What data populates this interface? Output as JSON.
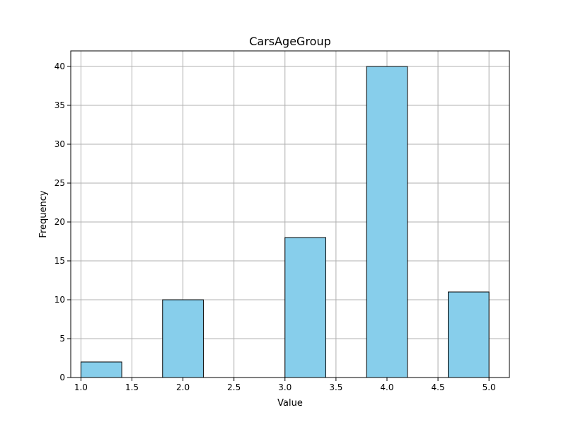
{
  "chart_data": {
    "type": "bar",
    "title": "CarsAgeGroup",
    "xlabel": "Value",
    "ylabel": "Frequency",
    "xlim": [
      0.9,
      5.2
    ],
    "ylim": [
      0,
      42
    ],
    "grid": true,
    "bar_color": "#87ceeb",
    "edge_color": "#000000",
    "grid_color": "#b0b0b0",
    "bins": [
      {
        "start": 1.0,
        "end": 1.4,
        "value": 2
      },
      {
        "start": 1.4,
        "end": 1.8,
        "value": 0
      },
      {
        "start": 1.8,
        "end": 2.2,
        "value": 10
      },
      {
        "start": 2.2,
        "end": 2.6,
        "value": 0
      },
      {
        "start": 2.6,
        "end": 3.0,
        "value": 0
      },
      {
        "start": 3.0,
        "end": 3.4,
        "value": 18
      },
      {
        "start": 3.4,
        "end": 3.8,
        "value": 0
      },
      {
        "start": 3.8,
        "end": 4.2,
        "value": 40
      },
      {
        "start": 4.2,
        "end": 4.6,
        "value": 0
      },
      {
        "start": 4.6,
        "end": 5.0,
        "value": 11
      }
    ],
    "x_ticks": [
      1.0,
      1.5,
      2.0,
      2.5,
      3.0,
      3.5,
      4.0,
      4.5,
      5.0
    ],
    "x_tick_labels": [
      "1.0",
      "1.5",
      "2.0",
      "2.5",
      "3.0",
      "3.5",
      "4.0",
      "4.5",
      "5.0"
    ],
    "y_ticks": [
      0,
      5,
      10,
      15,
      20,
      25,
      30,
      35,
      40
    ],
    "y_tick_labels": [
      "0",
      "5",
      "10",
      "15",
      "20",
      "25",
      "30",
      "35",
      "40"
    ]
  }
}
